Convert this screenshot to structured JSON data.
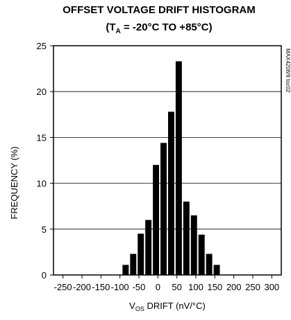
{
  "chart_data": {
    "type": "bar",
    "title": {
      "line1": "OFFSET VOLTAGE DRIFT HISTOGRAM",
      "line2_open": "(T",
      "line2_sub": "A",
      "line2_rest": " = -20°C TO +85°C)"
    },
    "ylabel": "FREQUENCY (%)",
    "xlabel": {
      "prefix": "V",
      "sub": "OS",
      "rest": " DRIFT (nV/°C)"
    },
    "figure_id": "MAX4208/9 toc02",
    "xlim": [
      -275,
      325
    ],
    "ylim": [
      0,
      25
    ],
    "x_ticks": [
      -250,
      -200,
      -150,
      -100,
      -50,
      0,
      50,
      100,
      150,
      200,
      250,
      300
    ],
    "y_ticks": [
      0,
      5,
      10,
      15,
      20,
      25
    ],
    "gridlines": "horizontal",
    "bin_width": 20,
    "bins": [
      {
        "x": -85,
        "value": 1.1
      },
      {
        "x": -65,
        "value": 2.3
      },
      {
        "x": -45,
        "value": 4.5
      },
      {
        "x": -25,
        "value": 6.0
      },
      {
        "x": -5,
        "value": 12.0
      },
      {
        "x": 15,
        "value": 14.4
      },
      {
        "x": 35,
        "value": 17.8
      },
      {
        "x": 55,
        "value": 23.3
      },
      {
        "x": 75,
        "value": 8.0
      },
      {
        "x": 95,
        "value": 6.5
      },
      {
        "x": 115,
        "value": 4.4
      },
      {
        "x": 135,
        "value": 2.3
      },
      {
        "x": 155,
        "value": 1.1
      }
    ],
    "bar_color": "#000000"
  }
}
